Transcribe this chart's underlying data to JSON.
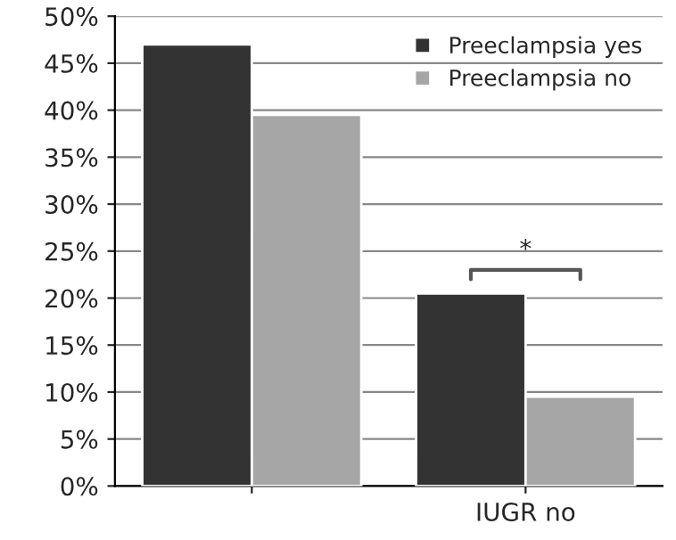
{
  "chart_data": {
    "type": "bar",
    "categories": [
      null,
      "IUGR no"
    ],
    "series": [
      {
        "name": "Preeclampsia yes",
        "color": "#333333",
        "values": [
          47,
          20.5
        ]
      },
      {
        "name": "Preeclampsia no",
        "color": "#a6a6a6",
        "values": [
          39.5,
          9.5
        ]
      }
    ],
    "ylim": [
      0,
      50
    ],
    "yticks": [
      {
        "value": 0,
        "label": "0%"
      },
      {
        "value": 5,
        "label": "5%"
      },
      {
        "value": 10,
        "label": "10%"
      },
      {
        "value": 15,
        "label": "15%"
      },
      {
        "value": 20,
        "label": "20%"
      },
      {
        "value": 25,
        "label": "25%"
      },
      {
        "value": 30,
        "label": "30%"
      },
      {
        "value": 35,
        "label": "35%"
      },
      {
        "value": 40,
        "label": "40%"
      },
      {
        "value": 45,
        "label": "45%"
      },
      {
        "value": 50,
        "label": "50%"
      }
    ],
    "grid": "y",
    "legend": "top right",
    "annotations": [
      "*"
    ]
  }
}
